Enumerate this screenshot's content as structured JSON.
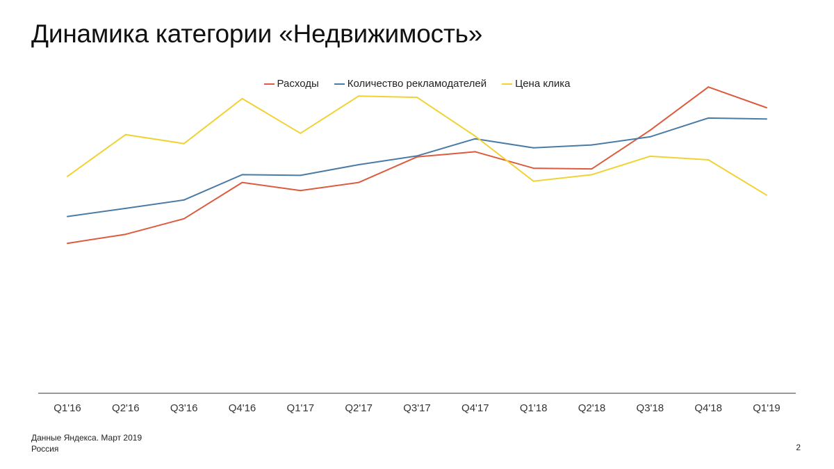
{
  "slide": {
    "title": "Динамика категории «Недвижимость»",
    "source_line1": "Данные Яндекса. Март 2019",
    "source_line2": "Россия",
    "page_number": "2"
  },
  "chart_data": {
    "type": "line",
    "title": "",
    "xlabel": "",
    "ylabel": "",
    "categories": [
      "Q1'16",
      "Q2'16",
      "Q3'16",
      "Q4'16",
      "Q1'17",
      "Q2'17",
      "Q3'17",
      "Q4'17",
      "Q1'18",
      "Q2'18",
      "Q3'18",
      "Q4'18",
      "Q1'19"
    ],
    "ylim": [
      0,
      100
    ],
    "grid": false,
    "y_axis_labels_shown": false,
    "legend_position": "top-center",
    "series": [
      {
        "name": "Расходы",
        "color": "#dd5a3c",
        "values": [
          46.3,
          49.1,
          53.9,
          65.1,
          62.6,
          65.1,
          73.0,
          74.6,
          69.5,
          69.3,
          81.2,
          94.6,
          88.2
        ]
      },
      {
        "name": "Количество рекламодателей",
        "color": "#4a7ba5",
        "values": [
          54.6,
          57.1,
          59.7,
          67.5,
          67.3,
          70.6,
          73.3,
          78.6,
          75.8,
          76.7,
          79.2,
          85.0,
          84.7
        ]
      },
      {
        "name": "Цена клика",
        "color": "#f0d233",
        "values": [
          67.0,
          79.9,
          77.1,
          91.0,
          80.3,
          91.8,
          91.4,
          79.4,
          65.5,
          67.5,
          73.2,
          72.1,
          61.2
        ]
      }
    ]
  }
}
